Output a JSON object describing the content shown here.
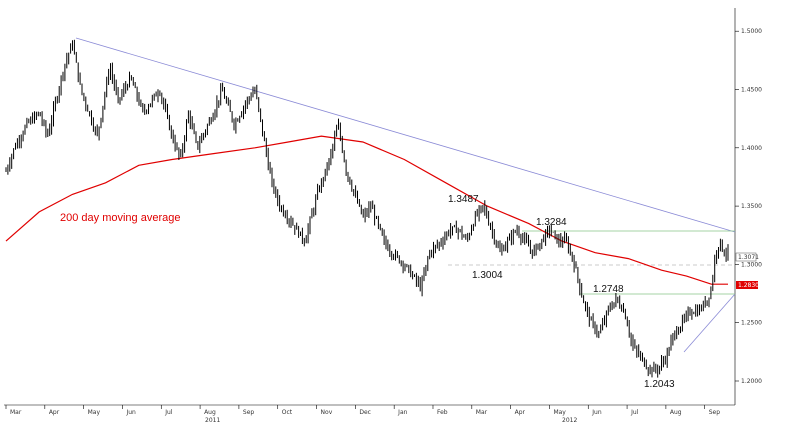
{
  "chart_data": {
    "type": "candlestick",
    "colors": {
      "price": "#000000",
      "moving_average": "#e00000",
      "trend_line": "#8a8ad6",
      "level_line": "#88c488",
      "dashed_line": "#bbbbbb"
    },
    "x_months": [
      "Mar",
      "Apr",
      "May",
      "Jun",
      "Jul",
      "Aug",
      "Sep",
      "Oct",
      "Nov",
      "Dec",
      "Jan",
      "Feb",
      "Mar",
      "Apr",
      "May",
      "Jun",
      "Jul",
      "Aug",
      "Sep"
    ],
    "x_years": [
      "2011",
      "2012"
    ],
    "y_ticks": [
      "1.5000",
      "1.4500",
      "1.4000",
      "1.3500",
      "1.3000",
      "1.2500",
      "1.2000"
    ],
    "ylim": [
      1.18,
      1.55
    ],
    "moving_average_label": "200 day moving average",
    "annotations": [
      "1.3487",
      "1.3284",
      "1.3004",
      "1.2748",
      "1.2043"
    ],
    "last_price_label": "1.3071",
    "ma_value_label": "1.2830",
    "price_path": [
      [
        0,
        1.38
      ],
      [
        2,
        1.4
      ],
      [
        5,
        1.42
      ],
      [
        8,
        1.43
      ],
      [
        10,
        1.41
      ],
      [
        12,
        1.44
      ],
      [
        14,
        1.47
      ],
      [
        16,
        1.49
      ],
      [
        18,
        1.45
      ],
      [
        20,
        1.43
      ],
      [
        22,
        1.41
      ],
      [
        24,
        1.45
      ],
      [
        25,
        1.47
      ],
      [
        27,
        1.44
      ],
      [
        30,
        1.46
      ],
      [
        33,
        1.43
      ],
      [
        37,
        1.45
      ],
      [
        40,
        1.41
      ],
      [
        42,
        1.39
      ],
      [
        44,
        1.43
      ],
      [
        46,
        1.4
      ],
      [
        50,
        1.43
      ],
      [
        52,
        1.45
      ],
      [
        55,
        1.42
      ],
      [
        58,
        1.44
      ],
      [
        60,
        1.45
      ],
      [
        62,
        1.41
      ],
      [
        64,
        1.37
      ],
      [
        66,
        1.35
      ],
      [
        70,
        1.33
      ],
      [
        72,
        1.32
      ],
      [
        75,
        1.36
      ],
      [
        78,
        1.39
      ],
      [
        80,
        1.42
      ],
      [
        82,
        1.38
      ],
      [
        84,
        1.36
      ],
      [
        86,
        1.34
      ],
      [
        88,
        1.35
      ],
      [
        91,
        1.32
      ],
      [
        93,
        1.31
      ],
      [
        96,
        1.3
      ],
      [
        98,
        1.29
      ],
      [
        100,
        1.28
      ],
      [
        102,
        1.31
      ],
      [
        105,
        1.32
      ],
      [
        107,
        1.33
      ],
      [
        109,
        1.33
      ],
      [
        111,
        1.32
      ],
      [
        113,
        1.34
      ],
      [
        115,
        1.35
      ],
      [
        117,
        1.33
      ],
      [
        119,
        1.31
      ],
      [
        121,
        1.32
      ],
      [
        123,
        1.33
      ],
      [
        125,
        1.32
      ],
      [
        127,
        1.31
      ],
      [
        129,
        1.32
      ],
      [
        131,
        1.33
      ],
      [
        133,
        1.32
      ],
      [
        135,
        1.32
      ],
      [
        137,
        1.3
      ],
      [
        139,
        1.27
      ],
      [
        141,
        1.25
      ],
      [
        143,
        1.24
      ],
      [
        145,
        1.26
      ],
      [
        147,
        1.27
      ],
      [
        149,
        1.26
      ],
      [
        151,
        1.23
      ],
      [
        153,
        1.22
      ],
      [
        155,
        1.21
      ],
      [
        157,
        1.21
      ],
      [
        159,
        1.22
      ],
      [
        161,
        1.24
      ],
      [
        163,
        1.25
      ],
      [
        165,
        1.26
      ],
      [
        167,
        1.26
      ],
      [
        169,
        1.27
      ],
      [
        170,
        1.28
      ],
      [
        171,
        1.31
      ],
      [
        172,
        1.32
      ],
      [
        173,
        1.31
      ],
      [
        174,
        1.31
      ]
    ],
    "ma_path": [
      [
        0,
        1.32
      ],
      [
        8,
        1.345
      ],
      [
        16,
        1.36
      ],
      [
        24,
        1.37
      ],
      [
        32,
        1.385
      ],
      [
        40,
        1.39
      ],
      [
        50,
        1.395
      ],
      [
        60,
        1.4
      ],
      [
        68,
        1.405
      ],
      [
        76,
        1.41
      ],
      [
        86,
        1.405
      ],
      [
        96,
        1.39
      ],
      [
        106,
        1.37
      ],
      [
        116,
        1.35
      ],
      [
        126,
        1.335
      ],
      [
        134,
        1.32
      ],
      [
        142,
        1.31
      ],
      [
        150,
        1.305
      ],
      [
        158,
        1.295
      ],
      [
        164,
        1.29
      ],
      [
        170,
        1.283
      ],
      [
        174,
        1.283
      ]
    ]
  }
}
